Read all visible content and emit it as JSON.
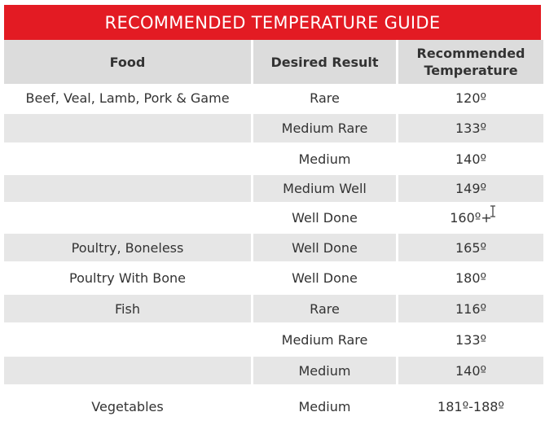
{
  "title": "RECOMMENDED TEMPERATURE GUIDE",
  "colors": {
    "banner": "#e31b23",
    "header_bg": "#dcdcdc",
    "row_alt_bg": "#e6e6e6",
    "text": "#333333"
  },
  "columns": [
    "Food",
    "Desired Result",
    "Recommended Temperature"
  ],
  "rows": [
    {
      "food": "Beef, Veal, Lamb, Pork & Game",
      "result": "Rare",
      "temp": "120º"
    },
    {
      "food": "",
      "result": "Medium Rare",
      "temp": "133º"
    },
    {
      "food": "",
      "result": "Medium",
      "temp": "140º"
    },
    {
      "food": "",
      "result": "Medium Well",
      "temp": "149º"
    },
    {
      "food": "",
      "result": "Well Done",
      "temp": "160º+"
    },
    {
      "food": "Poultry, Boneless",
      "result": "Well Done",
      "temp": "165º"
    },
    {
      "food": "Poultry With Bone",
      "result": "Well Done",
      "temp": "180º"
    },
    {
      "food": "Fish",
      "result": "Rare",
      "temp": "116º"
    },
    {
      "food": "",
      "result": "Medium Rare",
      "temp": "133º"
    },
    {
      "food": "",
      "result": "Medium",
      "temp": "140º"
    },
    {
      "food": "Vegetables",
      "result": "Medium",
      "temp": "181º-188º"
    }
  ]
}
